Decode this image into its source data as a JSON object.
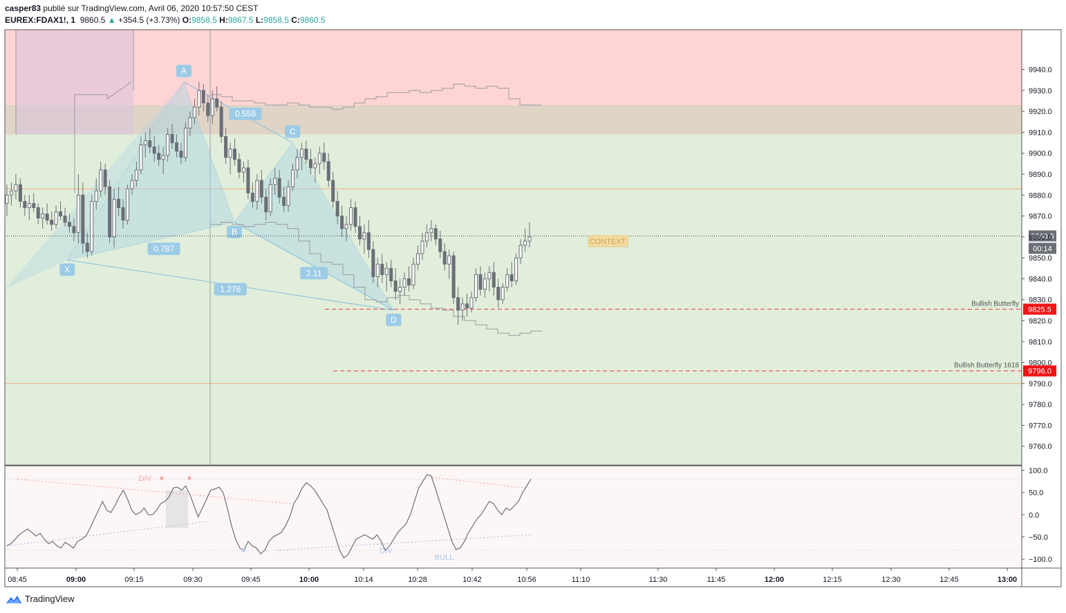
{
  "header": {
    "author": "casper83",
    "published_text": "publié sur TradingView.com, Avril 06, 2020 10:57:50 CEST",
    "symbol": "EUREX:FDAX1!, 1",
    "last": "9860.5",
    "change": "+354.5 (+3.73%)",
    "o_label": "O:",
    "o_value": "9858.5",
    "h_label": "H:",
    "h_value": "9867.5",
    "l_label": "L:",
    "l_value": "9858.5",
    "c_label": "C:",
    "c_value": "9860.5"
  },
  "footer": {
    "brand": "TradingView"
  },
  "colors": {
    "up": "#26a69a",
    "candle": "#6b6e76",
    "pattern_fill": "#aad4e6",
    "pattern_line": "#86bfdc",
    "label_bg": "#9ccbe6",
    "red_zone": "#ffd4d4",
    "green_zone": "#e0eedb",
    "overlap_zone": "#dfd4c6",
    "purple_zone": "#d8c3dc",
    "orange_line": "#f0a878",
    "red_dash": "#f03a3a",
    "badge_red": "#f01414",
    "badge_gray": "#6b6e76",
    "context_bg": "#f4dba0",
    "context_text": "#c7a45a"
  },
  "chart_data": [
    {
      "type": "candlestick",
      "y_axis_ticks": [
        9760,
        9770,
        9780,
        9790,
        9800,
        9810,
        9820,
        9830,
        9840,
        9850,
        9860,
        9870,
        9880,
        9890,
        9900,
        9910,
        9920,
        9930,
        9940
      ],
      "y_axis_labels": [
        "9760.0",
        "9770.0",
        "9780.0",
        "9790.0",
        "9800.0",
        "9810.0",
        "9820.0",
        "9830.0",
        "9840.0",
        "9850.0",
        "9860.0",
        "9870.0",
        "9880.0",
        "9890.0",
        "9900.0",
        "9910.0",
        "9920.0",
        "9930.0",
        "9940.0"
      ],
      "ylim": [
        9751,
        9959
      ],
      "x_axis_labels": [
        "08:45",
        "09:00",
        "09:15",
        "09:30",
        "09:45",
        "10:00",
        "10:14",
        "10:28",
        "10:42",
        "10:56",
        "11:10",
        "11:30",
        "11:45",
        "12:00",
        "12:15",
        "12:30",
        "12:45",
        "13:00"
      ],
      "last_price": {
        "value": 9860.5,
        "label": "9860.5",
        "countdown": "00:14"
      },
      "zones": [
        {
          "name": "supply",
          "from": 9909,
          "to": 9959,
          "color": "#ffd4d4"
        },
        {
          "name": "overlap",
          "from": 9909,
          "to": 9923,
          "color": "#dfd4c6"
        },
        {
          "name": "demand",
          "from": 9751,
          "to": 9909,
          "color": "#e0eedb"
        }
      ],
      "horizontal_lines": [
        {
          "value": 9883,
          "style": "solid",
          "color": "#f0a878"
        },
        {
          "value": 9790,
          "style": "solid",
          "color": "#f0a878"
        },
        {
          "value": 9825.5,
          "style": "dashed",
          "color": "#f03a3a",
          "label": "Bullish Butterfly",
          "badge": "9825.5"
        },
        {
          "value": 9796,
          "style": "dashed",
          "color": "#f03a3a",
          "label": "Bullish Butterfly 1618",
          "badge": "9796.0"
        }
      ],
      "context_label": "CONTEXT",
      "harmonic_pattern": {
        "name": "Bullish Butterfly",
        "points": [
          {
            "label": "X",
            "time": "09:00",
            "price": 9849
          },
          {
            "label": "A",
            "time": "09:30",
            "price": 9934
          },
          {
            "label": "B",
            "time": "09:43",
            "price": 9867
          },
          {
            "label": "C",
            "time": "09:58",
            "price": 9905
          },
          {
            "label": "D",
            "time": "10:24",
            "price": 9825
          }
        ],
        "ratios": [
          {
            "label": "0.787",
            "between": "XB"
          },
          {
            "label": "0.558",
            "between": "AC"
          },
          {
            "label": "2.11",
            "between": "BD"
          },
          {
            "label": "1.276",
            "between": "XD"
          }
        ]
      },
      "candles_ohlc_approx": [
        [
          9876,
          9885,
          9870,
          9880
        ],
        [
          9880,
          9886,
          9875,
          9882
        ],
        [
          9882,
          9890,
          9878,
          9885
        ],
        [
          9885,
          9888,
          9874,
          9877
        ],
        [
          9877,
          9880,
          9870,
          9874
        ],
        [
          9874,
          9880,
          9868,
          9876
        ],
        [
          9876,
          9881,
          9872,
          9874
        ],
        [
          9874,
          9876,
          9866,
          9869
        ],
        [
          9869,
          9874,
          9864,
          9871
        ],
        [
          9871,
          9876,
          9866,
          9868
        ],
        [
          9868,
          9872,
          9863,
          9866
        ],
        [
          9866,
          9875,
          9864,
          9872
        ],
        [
          9872,
          9877,
          9868,
          9870
        ],
        [
          9870,
          9874,
          9865,
          9867
        ],
        [
          9867,
          9871,
          9862,
          9865
        ],
        [
          9865,
          9869,
          9858,
          9862
        ],
        [
          9862,
          9890,
          9857,
          9880
        ],
        [
          9880,
          9886,
          9852,
          9857
        ],
        [
          9857,
          9862,
          9850,
          9853
        ],
        [
          9853,
          9880,
          9851,
          9877
        ],
        [
          9877,
          9888,
          9873,
          9882
        ],
        [
          9882,
          9896,
          9879,
          9892
        ],
        [
          9892,
          9895,
          9880,
          9884
        ],
        [
          9884,
          9887,
          9857,
          9860
        ],
        [
          9860,
          9883,
          9855,
          9878
        ],
        [
          9878,
          9884,
          9870,
          9874
        ],
        [
          9874,
          9878,
          9864,
          9868
        ],
        [
          9868,
          9885,
          9866,
          9883
        ],
        [
          9883,
          9890,
          9880,
          9887
        ],
        [
          9887,
          9896,
          9884,
          9892
        ],
        [
          9892,
          9908,
          9890,
          9904
        ],
        [
          9904,
          9910,
          9898,
          9906
        ],
        [
          9906,
          9912,
          9900,
          9903
        ],
        [
          9903,
          9908,
          9896,
          9900
        ],
        [
          9900,
          9904,
          9894,
          9897
        ],
        [
          9897,
          9903,
          9890,
          9899
        ],
        [
          9899,
          9912,
          9896,
          9909
        ],
        [
          9909,
          9914,
          9902,
          9905
        ],
        [
          9905,
          9909,
          9898,
          9901
        ],
        [
          9901,
          9905,
          9895,
          9898
        ],
        [
          9898,
          9915,
          9896,
          9912
        ],
        [
          9912,
          9920,
          9908,
          9917
        ],
        [
          9917,
          9926,
          9914,
          9922
        ],
        [
          9922,
          9934,
          9918,
          9930
        ],
        [
          9930,
          9933,
          9920,
          9924
        ],
        [
          9924,
          9928,
          9915,
          9918
        ],
        [
          9918,
          9930,
          9914,
          9926
        ],
        [
          9926,
          9932,
          9920,
          9922
        ],
        [
          9922,
          9925,
          9905,
          9908
        ],
        [
          9908,
          9912,
          9895,
          9898
        ],
        [
          9898,
          9905,
          9890,
          9902
        ],
        [
          9902,
          9907,
          9894,
          9897
        ],
        [
          9897,
          9900,
          9888,
          9891
        ],
        [
          9891,
          9896,
          9886,
          9893
        ],
        [
          9893,
          9897,
          9878,
          9881
        ],
        [
          9881,
          9886,
          9874,
          9877
        ],
        [
          9877,
          9890,
          9873,
          9887
        ],
        [
          9887,
          9892,
          9876,
          9879
        ],
        [
          9879,
          9883,
          9868,
          9872
        ],
        [
          9872,
          9888,
          9870,
          9885
        ],
        [
          9885,
          9893,
          9880,
          9888
        ],
        [
          9888,
          9892,
          9876,
          9879
        ],
        [
          9879,
          9884,
          9872,
          9875
        ],
        [
          9875,
          9887,
          9872,
          9884
        ],
        [
          9884,
          9895,
          9882,
          9892
        ],
        [
          9892,
          9902,
          9888,
          9898
        ],
        [
          9898,
          9905,
          9892,
          9902
        ],
        [
          9902,
          9906,
          9895,
          9897
        ],
        [
          9897,
          9902,
          9890,
          9893
        ],
        [
          9893,
          9898,
          9886,
          9895
        ],
        [
          9895,
          9903,
          9890,
          9900
        ],
        [
          9900,
          9905,
          9892,
          9896
        ],
        [
          9896,
          9900,
          9884,
          9887
        ],
        [
          9887,
          9891,
          9874,
          9877
        ],
        [
          9877,
          9882,
          9866,
          9870
        ],
        [
          9870,
          9875,
          9860,
          9864
        ],
        [
          9864,
          9870,
          9858,
          9866
        ],
        [
          9866,
          9878,
          9863,
          9874
        ],
        [
          9874,
          9877,
          9862,
          9865
        ],
        [
          9865,
          9870,
          9856,
          9859
        ],
        [
          9859,
          9866,
          9852,
          9862
        ],
        [
          9862,
          9868,
          9850,
          9854
        ],
        [
          9854,
          9858,
          9838,
          9841
        ],
        [
          9841,
          9850,
          9836,
          9847
        ],
        [
          9847,
          9852,
          9838,
          9842
        ],
        [
          9842,
          9848,
          9834,
          9845
        ],
        [
          9845,
          9849,
          9836,
          9839
        ],
        [
          9839,
          9845,
          9830,
          9834
        ],
        [
          9834,
          9840,
          9828,
          9836
        ],
        [
          9836,
          9843,
          9832,
          9840
        ],
        [
          9840,
          9846,
          9834,
          9837
        ],
        [
          9837,
          9850,
          9835,
          9847
        ],
        [
          9847,
          9856,
          9844,
          9852
        ],
        [
          9852,
          9862,
          9849,
          9858
        ],
        [
          9858,
          9866,
          9855,
          9862
        ],
        [
          9862,
          9868,
          9858,
          9864
        ],
        [
          9864,
          9866,
          9856,
          9859
        ],
        [
          9859,
          9863,
          9850,
          9853
        ],
        [
          9853,
          9857,
          9844,
          9847
        ],
        [
          9847,
          9854,
          9840,
          9851
        ],
        [
          9851,
          9853,
          9828,
          9831
        ],
        [
          9831,
          9836,
          9818,
          9825
        ],
        [
          9825,
          9831,
          9820,
          9828
        ],
        [
          9828,
          9833,
          9822,
          9826
        ],
        [
          9826,
          9834,
          9824,
          9831
        ],
        [
          9831,
          9845,
          9829,
          9842
        ],
        [
          9842,
          9846,
          9832,
          9835
        ],
        [
          9835,
          9843,
          9831,
          9840
        ],
        [
          9840,
          9846,
          9834,
          9843
        ],
        [
          9843,
          9848,
          9832,
          9836
        ],
        [
          9836,
          9840,
          9826,
          9830
        ],
        [
          9830,
          9838,
          9828,
          9836
        ],
        [
          9836,
          9845,
          9834,
          9842
        ],
        [
          9842,
          9848,
          9836,
          9839
        ],
        [
          9839,
          9852,
          9837,
          9850
        ],
        [
          9850,
          9859,
          9847,
          9856
        ],
        [
          9856,
          9864,
          9853,
          9858
        ],
        [
          9858,
          9867,
          9855,
          9860
        ]
      ]
    },
    {
      "type": "line",
      "name": "oscillator",
      "y_axis_ticks": [
        100,
        50,
        0,
        -50,
        -100
      ],
      "y_axis_labels": [
        "100.0",
        "50.0",
        "0.0",
        "−50.0",
        "−100.0"
      ],
      "ylim": [
        -120,
        110
      ],
      "annotations": [
        {
          "text": "DIV",
          "time": "09:20",
          "value": 82,
          "color": "#f4a5a5"
        },
        {
          "text": "DIV",
          "time": "10:22",
          "value": -80,
          "color": "#a9c8ee"
        },
        {
          "text": "BULL",
          "time": "10:37",
          "value": -95,
          "color": "#a9c8ee"
        }
      ],
      "values": [
        -70,
        -65,
        -55,
        -45,
        -38,
        -32,
        -40,
        -48,
        -42,
        -55,
        -65,
        -60,
        -70,
        -75,
        -62,
        -68,
        -75,
        -60,
        -55,
        -48,
        -30,
        -10,
        10,
        30,
        10,
        5,
        20,
        40,
        55,
        35,
        10,
        0,
        5,
        15,
        0,
        0,
        10,
        25,
        30,
        40,
        60,
        62,
        55,
        65,
        45,
        20,
        -5,
        15,
        35,
        55,
        58,
        62,
        50,
        15,
        -25,
        -55,
        -75,
        -80,
        -60,
        -70,
        -75,
        -88,
        -80,
        -60,
        -50,
        -45,
        -40,
        -25,
        -5,
        25,
        40,
        60,
        72,
        65,
        55,
        40,
        25,
        10,
        -20,
        -50,
        -80,
        -97,
        -90,
        -72,
        -55,
        -50,
        -45,
        -50,
        -55,
        -45,
        -60,
        -80,
        -70,
        -55,
        -40,
        -30,
        -20,
        0,
        30,
        60,
        75,
        90,
        88,
        60,
        30,
        0,
        -30,
        -60,
        -78,
        -75,
        -60,
        -40,
        -25,
        -10,
        0,
        15,
        30,
        25,
        10,
        0,
        15,
        10,
        20,
        30,
        50,
        65,
        80
      ]
    }
  ]
}
